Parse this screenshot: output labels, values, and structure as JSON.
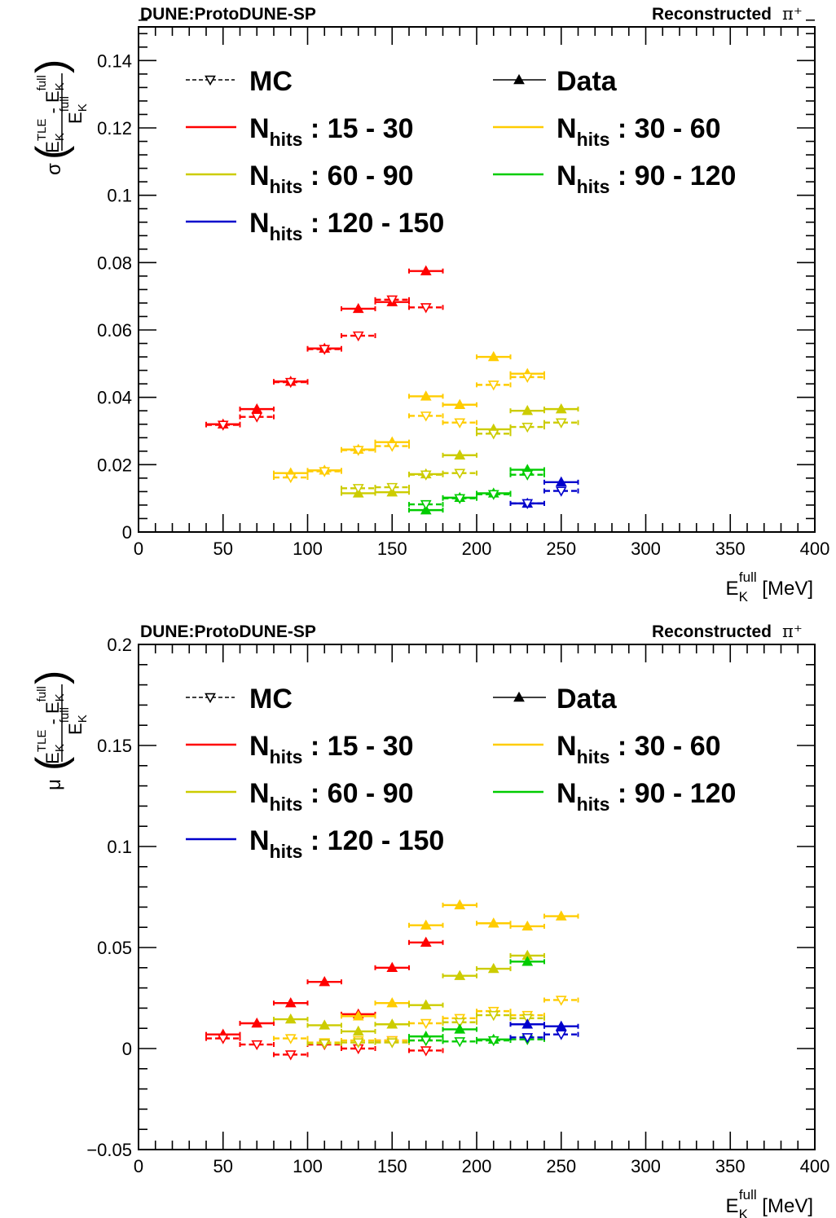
{
  "colors": {
    "red": "#ff0000",
    "orange": "#ffcc00",
    "olive": "#cccc00",
    "green": "#00cc00",
    "blue": "#0000cc",
    "axis": "#000000"
  },
  "legend": {
    "mc": "MC",
    "data": "Data",
    "bins": [
      {
        "label": "N_hits : 15 - 30",
        "main": "N",
        "sub": "hits",
        "range": " : 15 - 30",
        "color": "#ff0000"
      },
      {
        "label": "N_hits : 30 - 60",
        "main": "N",
        "sub": "hits",
        "range": " : 30 - 60",
        "color": "#ffcc00"
      },
      {
        "label": "N_hits : 60 - 90",
        "main": "N",
        "sub": "hits",
        "range": " : 60 - 90",
        "color": "#cccc00"
      },
      {
        "label": "N_hits : 90 - 120",
        "main": "N",
        "sub": "hits",
        "range": " : 90 - 120",
        "color": "#00cc00"
      },
      {
        "label": "N_hits : 120 - 150",
        "main": "N",
        "sub": "hits",
        "range": " : 120 - 150",
        "color": "#0000cc"
      }
    ]
  },
  "chart_data": [
    {
      "type": "scatter",
      "top_left_label": "DUNE:ProtoDUNE-SP",
      "top_right_label": "Reconstructed",
      "particle_label": "π⁺",
      "ylabel_prefix": "σ",
      "ylabel_fraction_num": "E_K^TLE - E_K^full",
      "ylabel_fraction_den": "E_K^full",
      "xlabel": "E_K^full [MeV]",
      "xlim": [
        0,
        400
      ],
      "ylim": [
        0,
        0.15
      ],
      "xticks": [
        "0",
        "50",
        "100",
        "150",
        "200",
        "250",
        "300",
        "350",
        "400"
      ],
      "yticks": [
        "0",
        "0.02",
        "0.04",
        "0.06",
        "0.08",
        "0.1",
        "0.12",
        "0.14"
      ],
      "bin_half_width": 10,
      "series": [
        {
          "group": "N_hits : 15 - 30",
          "kind": "Data",
          "color": "#ff0000",
          "x": [
            50,
            70,
            90,
            110,
            130,
            150,
            170
          ],
          "y": [
            0.032,
            0.0365,
            0.0447,
            0.0545,
            0.0663,
            0.0683,
            0.0775
          ]
        },
        {
          "group": "N_hits : 15 - 30",
          "kind": "MC",
          "color": "#ff0000",
          "x": [
            50,
            70,
            90,
            110,
            130,
            150,
            170
          ],
          "y": [
            0.0318,
            0.0342,
            0.0445,
            0.0543,
            0.0583,
            0.069,
            0.0667
          ]
        },
        {
          "group": "N_hits : 30 - 60",
          "kind": "Data",
          "color": "#ffcc00",
          "x": [
            90,
            110,
            130,
            150,
            170,
            190,
            210,
            230
          ],
          "y": [
            0.0175,
            0.0183,
            0.0245,
            0.0267,
            0.0403,
            0.0378,
            0.052,
            0.047
          ]
        },
        {
          "group": "N_hits : 30 - 60",
          "kind": "MC",
          "color": "#ffcc00",
          "x": [
            90,
            110,
            130,
            150,
            170,
            190,
            210,
            230
          ],
          "y": [
            0.0162,
            0.018,
            0.0243,
            0.0255,
            0.0345,
            0.0325,
            0.0437,
            0.046
          ]
        },
        {
          "group": "N_hits : 60 - 90",
          "kind": "Data",
          "color": "#cccc00",
          "x": [
            130,
            150,
            170,
            190,
            210,
            230,
            250
          ],
          "y": [
            0.0115,
            0.0118,
            0.0172,
            0.0228,
            0.0305,
            0.036,
            0.0365
          ]
        },
        {
          "group": "N_hits : 60 - 90",
          "kind": "MC",
          "color": "#cccc00",
          "x": [
            130,
            150,
            170,
            190,
            210,
            230,
            250
          ],
          "y": [
            0.013,
            0.0133,
            0.017,
            0.0175,
            0.0292,
            0.0312,
            0.0325
          ]
        },
        {
          "group": "N_hits : 90 - 120",
          "kind": "Data",
          "color": "#00cc00",
          "x": [
            170,
            190,
            210,
            230
          ],
          "y": [
            0.0065,
            0.0102,
            0.0115,
            0.0185
          ]
        },
        {
          "group": "N_hits : 90 - 120",
          "kind": "MC",
          "color": "#00cc00",
          "x": [
            170,
            190,
            210,
            230
          ],
          "y": [
            0.0082,
            0.01,
            0.0112,
            0.017
          ]
        },
        {
          "group": "N_hits : 120 - 150",
          "kind": "Data",
          "color": "#0000cc",
          "x": [
            230,
            250
          ],
          "y": [
            0.0085,
            0.0148
          ]
        },
        {
          "group": "N_hits : 120 - 150",
          "kind": "MC",
          "color": "#0000cc",
          "x": [
            230,
            250
          ],
          "y": [
            0.0085,
            0.0122
          ]
        }
      ]
    },
    {
      "type": "scatter",
      "top_left_label": "DUNE:ProtoDUNE-SP",
      "top_right_label": "Reconstructed",
      "particle_label": "π⁺",
      "ylabel_prefix": "μ",
      "ylabel_fraction_num": "E_K^TLE - E_K^full",
      "ylabel_fraction_den": "E_K^full",
      "xlabel": "E_K^full [MeV]",
      "xlim": [
        0,
        400
      ],
      "ylim": [
        -0.05,
        0.2
      ],
      "xticks": [
        "0",
        "50",
        "100",
        "150",
        "200",
        "250",
        "300",
        "350",
        "400"
      ],
      "yticks": [
        "−0.05",
        "0",
        "0.05",
        "0.1",
        "0.15",
        "0.2"
      ],
      "bin_half_width": 10,
      "series": [
        {
          "group": "N_hits : 15 - 30",
          "kind": "Data",
          "color": "#ff0000",
          "x": [
            50,
            70,
            90,
            110,
            130,
            150,
            170
          ],
          "y": [
            0.007,
            0.0125,
            0.0225,
            0.033,
            0.017,
            0.04,
            0.0525
          ]
        },
        {
          "group": "N_hits : 15 - 30",
          "kind": "MC",
          "color": "#ff0000",
          "x": [
            50,
            70,
            90,
            110,
            130,
            150,
            170
          ],
          "y": [
            0.005,
            0.002,
            -0.003,
            0.002,
            0.0,
            0.004,
            -0.001
          ]
        },
        {
          "group": "N_hits : 30 - 60",
          "kind": "Data",
          "color": "#ffcc00",
          "x": [
            130,
            150,
            170,
            190,
            210,
            230,
            250
          ],
          "y": [
            0.016,
            0.0225,
            0.061,
            0.071,
            0.062,
            0.0605,
            0.0655
          ]
        },
        {
          "group": "N_hits : 30 - 60",
          "kind": "MC",
          "color": "#ffcc00",
          "x": [
            90,
            110,
            130,
            150,
            170,
            190,
            210,
            230,
            250
          ],
          "y": [
            0.005,
            0.003,
            0.004,
            0.004,
            0.0125,
            0.015,
            0.0185,
            0.0165,
            0.024
          ]
        },
        {
          "group": "N_hits : 60 - 90",
          "kind": "Data",
          "color": "#cccc00",
          "x": [
            90,
            110,
            130,
            150,
            170,
            190,
            210,
            230
          ],
          "y": [
            0.0145,
            0.0115,
            0.0085,
            0.012,
            0.0215,
            0.036,
            0.0395,
            0.046
          ]
        },
        {
          "group": "N_hits : 60 - 90",
          "kind": "MC",
          "color": "#cccc00",
          "x": [
            110,
            130,
            150,
            170,
            190,
            210,
            230
          ],
          "y": [
            0.0025,
            0.003,
            0.003,
            0.004,
            0.013,
            0.0165,
            0.015
          ]
        },
        {
          "group": "N_hits : 90 - 120",
          "kind": "Data",
          "color": "#00cc00",
          "x": [
            170,
            190,
            210,
            230
          ],
          "y": [
            0.006,
            0.0095,
            0.0045,
            0.043
          ]
        },
        {
          "group": "N_hits : 90 - 120",
          "kind": "MC",
          "color": "#00cc00",
          "x": [
            170,
            190,
            210,
            230
          ],
          "y": [
            0.004,
            0.0035,
            0.004,
            0.0045
          ]
        },
        {
          "group": "N_hits : 120 - 150",
          "kind": "Data",
          "color": "#0000cc",
          "x": [
            230,
            250
          ],
          "y": [
            0.012,
            0.011
          ]
        },
        {
          "group": "N_hits : 120 - 150",
          "kind": "MC",
          "color": "#0000cc",
          "x": [
            230,
            250
          ],
          "y": [
            0.0055,
            0.007
          ]
        }
      ]
    }
  ]
}
